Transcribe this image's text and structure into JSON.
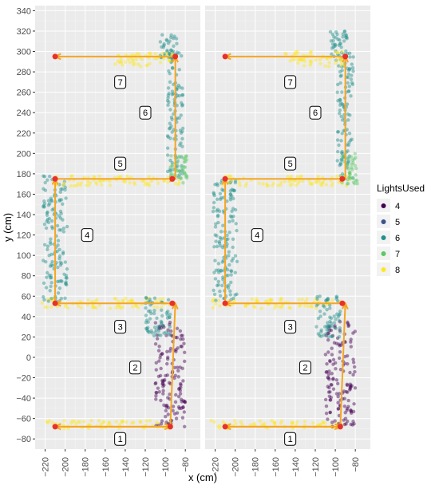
{
  "chart_data": {
    "type": "scatter",
    "title": "",
    "xlabel": "x (cm)",
    "ylabel": "y (cm)",
    "xlim": [
      -230,
      -65
    ],
    "ylim": [
      -90,
      345
    ],
    "x_ticks": [
      -220,
      -200,
      -180,
      -160,
      -140,
      -120,
      -100,
      -80
    ],
    "y_ticks": [
      -80,
      -60,
      -40,
      -20,
      0,
      20,
      40,
      60,
      80,
      100,
      120,
      140,
      160,
      180,
      200,
      220,
      240,
      260,
      280,
      300,
      320,
      340
    ],
    "grid": true,
    "panels": 2,
    "legend": {
      "title": "LightsUsed",
      "position": "right",
      "entries": [
        {
          "label": "4",
          "color": "#440154"
        },
        {
          "label": "5",
          "color": "#3b528b"
        },
        {
          "label": "6",
          "color": "#21908c"
        },
        {
          "label": "7",
          "color": "#5dc863"
        },
        {
          "label": "8",
          "color": "#fde725"
        }
      ]
    },
    "reference_path": {
      "color": "#f5a623",
      "points": [
        [
          -95,
          -68
        ],
        [
          -210,
          -68
        ],
        [
          -95,
          -68
        ],
        [
          -90,
          53
        ],
        [
          -210,
          53
        ],
        [
          -210,
          175
        ],
        [
          -90,
          175
        ],
        [
          -90,
          295
        ],
        [
          -210,
          295
        ]
      ]
    },
    "waypoints": [
      [
        -95,
        -68
      ],
      [
        -210,
        -68
      ],
      [
        -93,
        53
      ],
      [
        -210,
        53
      ],
      [
        -210,
        175
      ],
      [
        -93,
        175
      ],
      [
        -90,
        295
      ],
      [
        -210,
        295
      ]
    ],
    "segment_labels": [
      {
        "label": "1",
        "x": -145,
        "y": -80
      },
      {
        "label": "2",
        "x": -130,
        "y": -10
      },
      {
        "label": "3",
        "x": -145,
        "y": 30
      },
      {
        "label": "4",
        "x": -178,
        "y": 120
      },
      {
        "label": "5",
        "x": -145,
        "y": 190
      },
      {
        "label": "6",
        "x": -120,
        "y": 240
      },
      {
        "label": "7",
        "x": -145,
        "y": 270
      }
    ],
    "clusters": [
      {
        "series": "8",
        "x_range": [
          -225,
          -90
        ],
        "y_range": [
          -70,
          -62
        ]
      },
      {
        "series": "4",
        "x_range": [
          -110,
          -80
        ],
        "y_range": [
          -68,
          35
        ]
      },
      {
        "series": "8",
        "x_range": [
          -225,
          -95
        ],
        "y_range": [
          48,
          58
        ]
      },
      {
        "series": "6",
        "x_range": [
          -120,
          -95
        ],
        "y_range": [
          20,
          60
        ]
      },
      {
        "series": "6",
        "x_range": [
          -222,
          -198
        ],
        "y_range": [
          55,
          178
        ]
      },
      {
        "series": "8",
        "x_range": [
          -215,
          -85
        ],
        "y_range": [
          168,
          178
        ]
      },
      {
        "series": "6",
        "x_range": [
          -98,
          -82
        ],
        "y_range": [
          175,
          300
        ]
      },
      {
        "series": "7",
        "x_range": [
          -95,
          -78
        ],
        "y_range": [
          170,
          200
        ]
      },
      {
        "series": "6",
        "x_range": [
          -105,
          -88
        ],
        "y_range": [
          290,
          320
        ]
      },
      {
        "series": "8",
        "x_range": [
          -150,
          -90
        ],
        "y_range": [
          285,
          300
        ]
      }
    ]
  }
}
